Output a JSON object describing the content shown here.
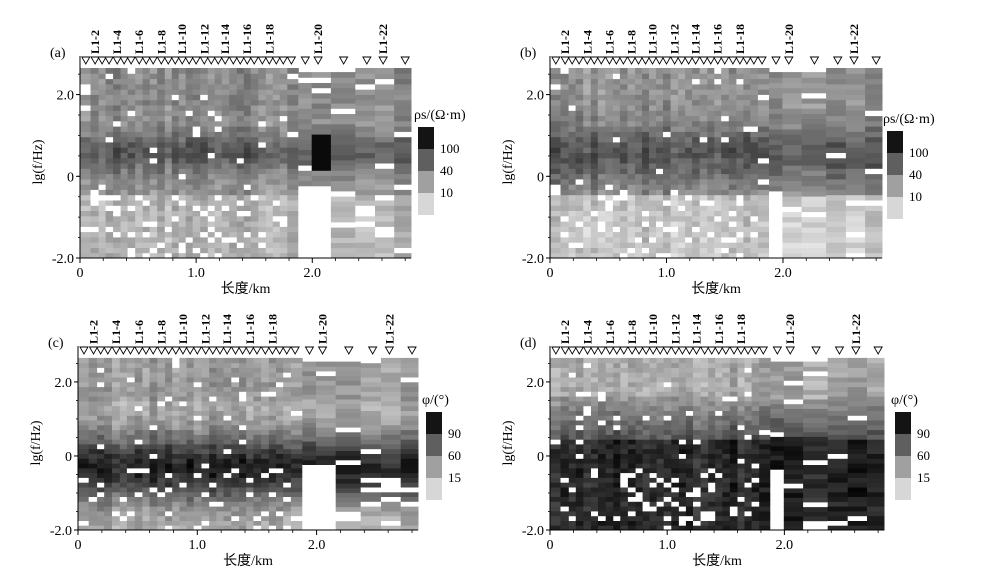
{
  "figure": {
    "stations": [
      "L1-2",
      "L1-4",
      "L1-6",
      "L1-8",
      "L1-10",
      "L1-12",
      "L1-14",
      "L1-16",
      "L1-18",
      "L1-20",
      "L1-22"
    ],
    "panels": [
      {
        "letter": "(a)",
        "ylabel": "lg(f/Hz)",
        "xlabel": "长度/km",
        "quantity": "rho",
        "colorbar": {
          "title": "ρs/(Ω·m)",
          "ticks": [
            "100",
            "40",
            "10"
          ]
        }
      },
      {
        "letter": "(b)",
        "ylabel": "lg(f/Hz)",
        "xlabel": "长度/km",
        "quantity": "rho",
        "colorbar": {
          "title": "ρs/(Ω·m)",
          "ticks": [
            "100",
            "40",
            "10"
          ]
        }
      },
      {
        "letter": "(c)",
        "ylabel": "lg(f/Hz)",
        "xlabel": "长度/km",
        "quantity": "phase",
        "colorbar": {
          "title": "φ/(°)",
          "ticks": [
            "90",
            "60",
            "15"
          ]
        }
      },
      {
        "letter": "(d)",
        "ylabel": "lg(f/Hz)",
        "xlabel": "长度/km",
        "quantity": "phase",
        "colorbar": {
          "title": "φ/(°)",
          "ticks": [
            "90",
            "60",
            "15"
          ]
        }
      }
    ]
  },
  "chart_data": [
    {
      "type": "heatmap",
      "title": "(a)",
      "xlabel": "长度/km",
      "ylabel": "lg(f/Hz)",
      "xlim": [
        0,
        2.85
      ],
      "ylim": [
        -2.0,
        2.7
      ],
      "xticks": [
        "0",
        "1.0",
        "2.0"
      ],
      "yticks": [
        "2.0",
        "0",
        "-2.0"
      ],
      "colorbar": {
        "label": "ρs/(Ω·m)",
        "ticks": [
          100,
          40,
          10
        ]
      },
      "station_labels": [
        "L1-2",
        "L1-4",
        "L1-6",
        "L1-8",
        "L1-10",
        "L1-12",
        "L1-14",
        "L1-16",
        "L1-18",
        "L1-20",
        "L1-22"
      ]
    },
    {
      "type": "heatmap",
      "title": "(b)",
      "xlabel": "长度/km",
      "ylabel": "lg(f/Hz)",
      "xlim": [
        0,
        2.85
      ],
      "ylim": [
        -2.0,
        2.7
      ],
      "xticks": [
        "0",
        "1.0",
        "2.0"
      ],
      "yticks": [
        "2.0",
        "0",
        "-2.0"
      ],
      "colorbar": {
        "label": "ρs/(Ω·m)",
        "ticks": [
          100,
          40,
          10
        ]
      },
      "station_labels": [
        "L1-2",
        "L1-4",
        "L1-6",
        "L1-8",
        "L1-10",
        "L1-12",
        "L1-14",
        "L1-16",
        "L1-18",
        "L1-20",
        "L1-22"
      ]
    },
    {
      "type": "heatmap",
      "title": "(c)",
      "xlabel": "长度/km",
      "ylabel": "lg(f/Hz)",
      "xlim": [
        0,
        2.85
      ],
      "ylim": [
        -2.0,
        2.7
      ],
      "xticks": [
        "0",
        "1.0",
        "2.0"
      ],
      "yticks": [
        "2.0",
        "0",
        "-2.0"
      ],
      "colorbar": {
        "label": "φ/(°)",
        "ticks": [
          90,
          60,
          15
        ]
      },
      "station_labels": [
        "L1-2",
        "L1-4",
        "L1-6",
        "L1-8",
        "L1-10",
        "L1-12",
        "L1-14",
        "L1-16",
        "L1-18",
        "L1-20",
        "L1-22"
      ]
    },
    {
      "type": "heatmap",
      "title": "(d)",
      "xlabel": "长度/km",
      "ylabel": "lg(f/Hz)",
      "xlim": [
        0,
        2.85
      ],
      "ylim": [
        -2.0,
        2.7
      ],
      "xticks": [
        "0",
        "1.0",
        "2.0"
      ],
      "yticks": [
        "2.0",
        "0",
        "-2.0"
      ],
      "colorbar": {
        "label": "φ/(°)",
        "ticks": [
          90,
          60,
          15
        ]
      },
      "station_labels": [
        "L1-2",
        "L1-4",
        "L1-6",
        "L1-8",
        "L1-10",
        "L1-12",
        "L1-14",
        "L1-16",
        "L1-18",
        "L1-20",
        "L1-22"
      ]
    }
  ]
}
